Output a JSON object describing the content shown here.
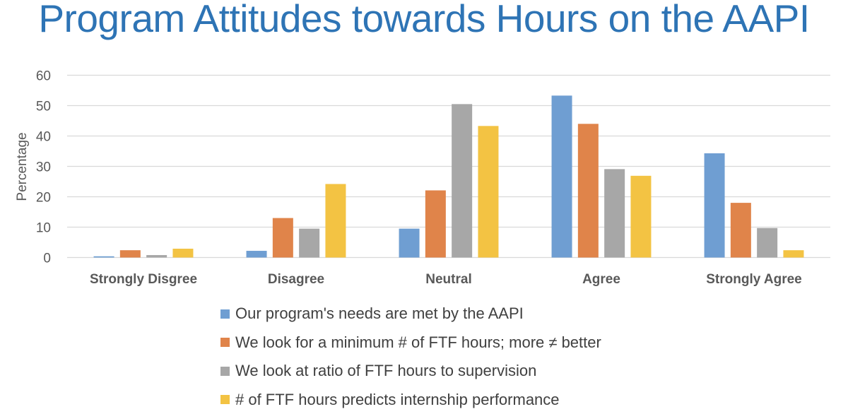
{
  "chart_data": {
    "type": "bar",
    "title": "Program Attitudes towards Hours on the AAPI",
    "xlabel": "",
    "ylabel": "Percentage",
    "ylim": [
      0,
      60
    ],
    "yticks": [
      0,
      10,
      20,
      30,
      40,
      50,
      60
    ],
    "grid": true,
    "legend_position": "bottom",
    "categories": [
      "Strongly Disgree",
      "Disagree",
      "Neutral",
      "Agree",
      "Strongly Agree"
    ],
    "series": [
      {
        "name": "Our program's needs are met by the AAPI",
        "color": "#6F9ED2",
        "values": [
          0.4,
          2.2,
          9.5,
          53.3,
          34.3
        ]
      },
      {
        "name": "We look for a minimum # of FTF hours; more ≠ better",
        "color": "#E0844A",
        "values": [
          2.4,
          13.0,
          22.1,
          44.0,
          18.0
        ]
      },
      {
        "name": "We look at ratio of FTF hours to supervision",
        "color": "#A7A7A7",
        "values": [
          0.8,
          9.5,
          50.5,
          29.1,
          9.7
        ]
      },
      {
        "name": "# of FTF hours predicts internship performance",
        "color": "#F3C343",
        "values": [
          2.9,
          24.2,
          43.3,
          26.9,
          2.4
        ]
      }
    ]
  }
}
